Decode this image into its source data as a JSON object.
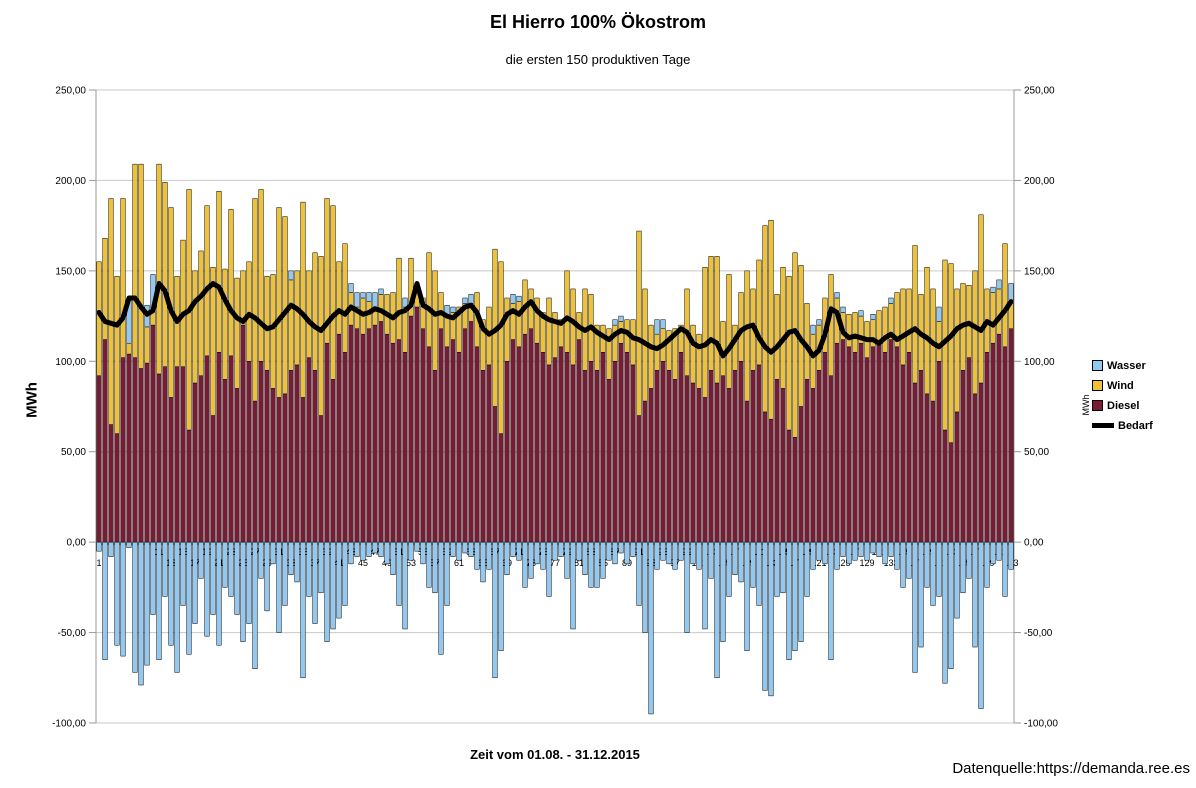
{
  "title": "El Hierro 100% Ökostrom",
  "subtitle": "die ersten 150 produktiven Tage",
  "source": "Datenquelle:https://demanda.ree.es",
  "axis": {
    "left_label": "MWh",
    "right_label": "MWh",
    "x_title": "Zeit vom 01.08. - 31.12.2015"
  },
  "legend": [
    {
      "label": "Wasser",
      "color": "#92C9F2",
      "swatch": "box"
    },
    {
      "label": "Wind",
      "color": "#F0C233",
      "swatch": "box"
    },
    {
      "label": "Diesel",
      "color": "#7A1B33",
      "swatch": "box"
    },
    {
      "label": "Bedarf",
      "color": "#000000",
      "swatch": "line"
    }
  ],
  "chart_data": {
    "type": "bar",
    "stacked": true,
    "title": "El Hierro 100% Ökostrom",
    "subtitle": "die ersten 150 produktiven Tage",
    "xlabel": "Zeit vom 01.08. - 31.12.2015",
    "ylabel_left": "MWh",
    "ylabel_right": "MWh",
    "ylim": [
      -100,
      250
    ],
    "y_tick_values": [
      250,
      200,
      150,
      100,
      50,
      0,
      -50,
      -100
    ],
    "y_tick_labels": [
      "250,00",
      "200,00",
      "150,00",
      "100,00",
      "50,00",
      "0,00",
      "-50,00",
      "-100,00"
    ],
    "x_first": 1,
    "x_last": 153,
    "x_tick_labels": [
      1,
      3,
      5,
      7,
      9,
      11,
      13,
      15,
      17,
      19,
      21,
      23,
      25,
      27,
      29,
      31,
      33,
      35,
      37,
      39,
      41,
      43,
      45,
      47,
      49,
      51,
      53,
      55,
      57,
      59,
      61,
      63,
      65,
      67,
      69,
      71,
      73,
      75,
      77,
      79,
      81,
      83,
      85,
      87,
      89,
      91,
      93,
      95,
      97,
      99,
      101,
      103,
      105,
      107,
      109,
      111,
      113,
      115,
      117,
      119,
      121,
      123,
      125,
      127,
      129,
      131,
      133,
      135,
      137,
      139,
      141,
      143,
      145,
      147,
      149,
      151,
      153
    ],
    "grid": true,
    "legend_position": "right",
    "series": [
      {
        "name": "Diesel",
        "type": "bar",
        "color": "#7A1B33",
        "values": [
          92,
          112,
          65,
          60,
          102,
          104,
          102,
          96,
          99,
          120,
          93,
          97,
          80,
          97,
          97,
          62,
          88,
          92,
          103,
          70,
          105,
          90,
          103,
          85,
          120,
          100,
          78,
          100,
          95,
          85,
          80,
          82,
          95,
          98,
          80,
          102,
          95,
          70,
          110,
          90,
          115,
          105,
          120,
          118,
          115,
          118,
          120,
          122,
          115,
          110,
          112,
          105,
          125,
          130,
          118,
          108,
          95,
          118,
          108,
          112,
          105,
          118,
          122,
          108,
          95,
          98,
          75,
          60,
          100,
          112,
          108,
          115,
          118,
          110,
          105,
          98,
          102,
          108,
          105,
          98,
          112,
          95,
          100,
          95,
          105,
          90,
          100,
          110,
          105,
          98,
          70,
          78,
          85,
          95,
          100,
          95,
          90,
          105,
          92,
          88,
          85,
          80,
          95,
          88,
          92,
          85,
          95,
          100,
          78,
          95,
          98,
          72,
          68,
          90,
          85,
          62,
          58,
          75,
          90,
          85,
          95,
          105,
          92,
          110,
          112,
          108,
          105,
          110,
          102,
          108,
          110,
          105,
          112,
          108,
          98,
          105,
          88,
          95,
          82,
          78,
          100,
          62,
          55,
          72,
          95,
          102,
          82,
          88,
          105,
          110,
          115,
          108,
          118
        ]
      },
      {
        "name": "Wind",
        "type": "bar",
        "color": "#F0C233",
        "values": [
          63,
          56,
          125,
          87,
          88,
          6,
          107,
          113,
          20,
          8,
          116,
          102,
          105,
          50,
          70,
          133,
          62,
          69,
          83,
          82,
          89,
          61,
          81,
          61,
          30,
          55,
          112,
          95,
          52,
          63,
          105,
          98,
          50,
          52,
          108,
          48,
          65,
          88,
          80,
          96,
          40,
          60,
          18,
          12,
          20,
          15,
          10,
          15,
          22,
          28,
          45,
          25,
          32,
          10,
          17,
          52,
          55,
          20,
          18,
          15,
          25,
          14,
          10,
          30,
          28,
          32,
          87,
          95,
          35,
          20,
          25,
          30,
          22,
          25,
          22,
          37,
          25,
          12,
          45,
          42,
          15,
          45,
          37,
          25,
          15,
          28,
          20,
          12,
          18,
          25,
          102,
          62,
          35,
          20,
          18,
          22,
          28,
          15,
          48,
          32,
          30,
          72,
          63,
          70,
          30,
          63,
          25,
          38,
          72,
          45,
          58,
          103,
          110,
          47,
          67,
          85,
          102,
          78,
          42,
          30,
          25,
          30,
          56,
          25,
          15,
          18,
          22,
          15,
          20,
          15,
          18,
          25,
          20,
          30,
          42,
          35,
          76,
          42,
          70,
          62,
          22,
          94,
          99,
          68,
          48,
          40,
          68,
          93,
          35,
          28,
          25,
          57,
          15
        ]
      },
      {
        "name": "Wasser",
        "type": "bar",
        "color": "#92C9F2",
        "values_positive": [
          0,
          0,
          0,
          0,
          0,
          25,
          0,
          0,
          12,
          20,
          0,
          0,
          0,
          0,
          0,
          0,
          0,
          0,
          0,
          0,
          0,
          0,
          0,
          0,
          0,
          0,
          0,
          0,
          0,
          0,
          0,
          0,
          5,
          0,
          0,
          0,
          0,
          0,
          0,
          0,
          0,
          0,
          5,
          8,
          3,
          5,
          8,
          3,
          0,
          0,
          0,
          5,
          0,
          3,
          0,
          0,
          0,
          0,
          5,
          3,
          0,
          3,
          5,
          0,
          0,
          0,
          0,
          0,
          0,
          5,
          3,
          0,
          0,
          0,
          0,
          0,
          0,
          3,
          0,
          0,
          0,
          0,
          0,
          0,
          0,
          0,
          3,
          3,
          0,
          0,
          0,
          0,
          0,
          8,
          5,
          0,
          0,
          0,
          0,
          0,
          0,
          0,
          0,
          0,
          0,
          0,
          0,
          0,
          0,
          0,
          0,
          0,
          0,
          0,
          0,
          0,
          0,
          0,
          0,
          5,
          3,
          0,
          0,
          3,
          3,
          0,
          0,
          3,
          0,
          3,
          0,
          0,
          3,
          0,
          0,
          0,
          0,
          0,
          0,
          0,
          8,
          0,
          0,
          0,
          0,
          0,
          0,
          0,
          0,
          3,
          5,
          0,
          10
        ],
        "values_negative": [
          -5,
          -65,
          -8,
          -57,
          -63,
          -3,
          -72,
          -79,
          -68,
          -40,
          -65,
          -30,
          -57,
          -72,
          -35,
          -62,
          -45,
          -20,
          -52,
          -40,
          -57,
          -25,
          -30,
          -40,
          -55,
          -45,
          -70,
          -20,
          -38,
          -12,
          -50,
          -35,
          -18,
          -22,
          -75,
          -30,
          -45,
          -28,
          -55,
          -48,
          -42,
          -35,
          -12,
          -8,
          -10,
          -8,
          -6,
          -8,
          -12,
          -18,
          -35,
          -48,
          -10,
          -5,
          -12,
          -25,
          -28,
          -62,
          -35,
          -8,
          -10,
          -6,
          -8,
          -15,
          -22,
          -15,
          -75,
          -60,
          -18,
          -8,
          -10,
          -25,
          -20,
          -12,
          -15,
          -30,
          -10,
          -8,
          -20,
          -48,
          -10,
          -18,
          -25,
          -25,
          -20,
          -10,
          -12,
          -6,
          -12,
          -8,
          -35,
          -50,
          -95,
          -15,
          -10,
          -12,
          -15,
          -10,
          -50,
          -12,
          -15,
          -48,
          -20,
          -75,
          -55,
          -30,
          -18,
          -22,
          -60,
          -25,
          -35,
          -82,
          -85,
          -30,
          -28,
          -65,
          -60,
          -55,
          -30,
          -15,
          -10,
          -12,
          -65,
          -15,
          -8,
          -12,
          -10,
          -8,
          -10,
          -6,
          -8,
          -12,
          -8,
          -15,
          -25,
          -20,
          -72,
          -58,
          -25,
          -35,
          -30,
          -78,
          -70,
          -42,
          -28,
          -20,
          -58,
          -92,
          -25,
          -12,
          -10,
          -30,
          -15
        ]
      },
      {
        "name": "Bedarf",
        "type": "line",
        "color": "#000000",
        "values": [
          127,
          122,
          121,
          120,
          124,
          135,
          135,
          130,
          126,
          128,
          143,
          139,
          128,
          122,
          126,
          128,
          133,
          136,
          140,
          143,
          141,
          134,
          128,
          124,
          122,
          126,
          124,
          121,
          118,
          119,
          123,
          127,
          131,
          129,
          126,
          122,
          119,
          117,
          121,
          125,
          128,
          126,
          130,
          128,
          126,
          127,
          129,
          128,
          126,
          124,
          127,
          128,
          131,
          143,
          131,
          129,
          126,
          127,
          125,
          124,
          127,
          130,
          131,
          127,
          118,
          115,
          117,
          120,
          126,
          128,
          126,
          130,
          133,
          128,
          125,
          123,
          122,
          121,
          124,
          122,
          119,
          117,
          119,
          116,
          114,
          112,
          115,
          117,
          116,
          113,
          112,
          110,
          108,
          107,
          109,
          112,
          115,
          118,
          116,
          110,
          108,
          109,
          112,
          110,
          103,
          107,
          112,
          117,
          119,
          120,
          113,
          108,
          105,
          108,
          112,
          116,
          117,
          112,
          108,
          103,
          106,
          115,
          129,
          127,
          116,
          113,
          114,
          113,
          112,
          112,
          110,
          113,
          115,
          112,
          114,
          116,
          118,
          115,
          113,
          110,
          108,
          111,
          114,
          118,
          120,
          121,
          119,
          117,
          122,
          120,
          124,
          128,
          133
        ]
      }
    ],
    "colors": {
      "grid": "#C9C9C9",
      "axis": "#999999",
      "text": "#000000"
    }
  }
}
